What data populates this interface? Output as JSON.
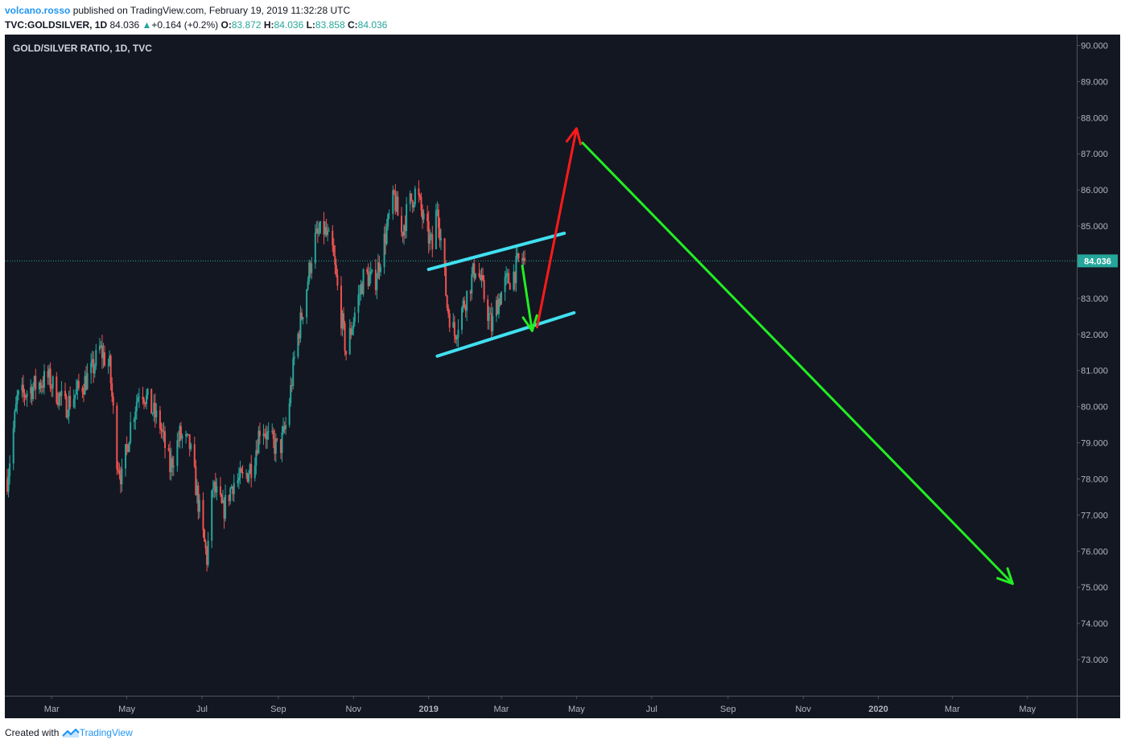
{
  "header": {
    "author": "volcano.rosso",
    "published_text": "published on TradingView.com, February 19, 2019 11:32:28 UTC",
    "symbol": "TVC:GOLDSILVER, 1D",
    "last": "84.036",
    "change_arrow": "▲",
    "change": "+0.164 (+0.2%)",
    "o_label": "O:",
    "o_value": "83.872",
    "h_label": "H:",
    "h_value": "84.036",
    "l_label": "L:",
    "l_value": "83.858",
    "c_label": "C:",
    "c_value": "84.036"
  },
  "footer": {
    "created_with": "Created with",
    "brand": "TradingView",
    "logo_icon": "tradingview-logo-icon"
  },
  "chart_data": {
    "type": "candlestick",
    "title": "GOLD/SILVER RATIO, 1D, TVC",
    "ylim": [
      72.0,
      90.3
    ],
    "y_ticks": [
      "90.000",
      "89.000",
      "88.000",
      "87.000",
      "86.000",
      "85.000",
      "84.000",
      "83.000",
      "82.000",
      "81.000",
      "80.000",
      "79.000",
      "78.000",
      "77.000",
      "76.000",
      "75.000",
      "74.000",
      "73.000"
    ],
    "x_ticks": [
      {
        "label": "Mar",
        "date": "2018-03-01"
      },
      {
        "label": "May",
        "date": "2018-05-01"
      },
      {
        "label": "Jul",
        "date": "2018-07-01"
      },
      {
        "label": "Sep",
        "date": "2018-09-01"
      },
      {
        "label": "Nov",
        "date": "2018-11-01"
      },
      {
        "label": "2019",
        "date": "2019-01-01"
      },
      {
        "label": "Mar",
        "date": "2019-03-01"
      },
      {
        "label": "May",
        "date": "2019-05-01"
      },
      {
        "label": "Jul",
        "date": "2019-07-01"
      },
      {
        "label": "Sep",
        "date": "2019-09-01"
      },
      {
        "label": "Nov",
        "date": "2019-11-01"
      },
      {
        "label": "2020",
        "date": "2020-01-01"
      },
      {
        "label": "Mar",
        "date": "2020-03-01"
      },
      {
        "label": "May",
        "date": "2020-05-01"
      }
    ],
    "x_range": [
      "2018-01-22",
      "2020-06-10"
    ],
    "last_price": 84.036,
    "last_price_label": "84.036",
    "grid": false,
    "colors": {
      "background": "#131722",
      "up": "#26a69a",
      "down": "#ef5350",
      "channel": "#40e0f0",
      "arrow_up": "#ff1a1a",
      "arrow_down": "#22ee22"
    },
    "price_path": [
      {
        "date": "2018-01-24",
        "close": 78.0
      },
      {
        "date": "2018-02-01",
        "close": 80.2
      },
      {
        "date": "2018-02-12",
        "close": 80.5
      },
      {
        "date": "2018-02-26",
        "close": 80.8
      },
      {
        "date": "2018-03-12",
        "close": 80.0
      },
      {
        "date": "2018-03-26",
        "close": 80.6
      },
      {
        "date": "2018-04-03",
        "close": 81.0
      },
      {
        "date": "2018-04-09",
        "close": 81.6
      },
      {
        "date": "2018-04-17",
        "close": 81.1
      },
      {
        "date": "2018-04-23",
        "close": 78.6
      },
      {
        "date": "2018-04-27",
        "close": 78.0
      },
      {
        "date": "2018-05-04",
        "close": 79.5
      },
      {
        "date": "2018-05-12",
        "close": 80.6
      },
      {
        "date": "2018-05-20",
        "close": 80.0
      },
      {
        "date": "2018-05-28",
        "close": 79.5
      },
      {
        "date": "2018-06-05",
        "close": 78.3
      },
      {
        "date": "2018-06-13",
        "close": 79.2
      },
      {
        "date": "2018-06-21",
        "close": 78.9
      },
      {
        "date": "2018-06-27",
        "close": 77.6
      },
      {
        "date": "2018-07-01",
        "close": 76.6
      },
      {
        "date": "2018-07-05",
        "close": 75.8
      },
      {
        "date": "2018-07-10",
        "close": 77.8
      },
      {
        "date": "2018-07-18",
        "close": 77.1
      },
      {
        "date": "2018-07-26",
        "close": 77.9
      },
      {
        "date": "2018-08-04",
        "close": 78.0
      },
      {
        "date": "2018-08-12",
        "close": 78.5
      },
      {
        "date": "2018-08-18",
        "close": 79.6
      },
      {
        "date": "2018-08-24",
        "close": 79.1
      },
      {
        "date": "2018-09-02",
        "close": 78.8
      },
      {
        "date": "2018-09-08",
        "close": 79.6
      },
      {
        "date": "2018-09-15",
        "close": 81.6
      },
      {
        "date": "2018-09-22",
        "close": 82.9
      },
      {
        "date": "2018-09-30",
        "close": 84.6
      },
      {
        "date": "2018-10-08",
        "close": 84.9
      },
      {
        "date": "2018-10-15",
        "close": 84.3
      },
      {
        "date": "2018-10-20",
        "close": 83.0
      },
      {
        "date": "2018-10-26",
        "close": 81.5
      },
      {
        "date": "2018-11-02",
        "close": 82.6
      },
      {
        "date": "2018-11-10",
        "close": 83.7
      },
      {
        "date": "2018-11-18",
        "close": 83.4
      },
      {
        "date": "2018-11-26",
        "close": 84.6
      },
      {
        "date": "2018-12-04",
        "close": 85.8
      },
      {
        "date": "2018-12-10",
        "close": 84.8
      },
      {
        "date": "2018-12-16",
        "close": 85.6
      },
      {
        "date": "2018-12-22",
        "close": 86.0
      },
      {
        "date": "2018-12-28",
        "close": 85.1
      },
      {
        "date": "2019-01-04",
        "close": 84.4
      },
      {
        "date": "2019-01-08",
        "close": 85.6
      },
      {
        "date": "2019-01-12",
        "close": 84.3
      },
      {
        "date": "2019-01-16",
        "close": 82.8
      },
      {
        "date": "2019-01-22",
        "close": 82.0
      },
      {
        "date": "2019-01-28",
        "close": 82.7
      },
      {
        "date": "2019-02-03",
        "close": 83.3
      },
      {
        "date": "2019-02-08",
        "close": 83.9
      },
      {
        "date": "2019-02-12",
        "close": 83.5
      },
      {
        "date": "2019-02-16",
        "close": 82.9
      },
      {
        "date": "2019-02-21",
        "close": 82.2
      },
      {
        "date": "2019-02-26",
        "close": 82.9
      },
      {
        "date": "2019-03-04",
        "close": 83.4
      },
      {
        "date": "2019-03-10",
        "close": 83.6
      },
      {
        "date": "2019-03-16",
        "close": 84.1
      },
      {
        "date": "2019-03-20",
        "close": 84.036
      }
    ],
    "annotations": {
      "channel_upper": {
        "start": [
          "2019-01-01",
          83.8
        ],
        "end": [
          "2019-04-21",
          84.8
        ]
      },
      "channel_lower": {
        "start": [
          "2019-01-08",
          81.4
        ],
        "end": [
          "2019-04-29",
          82.6
        ]
      },
      "arrow_down_small": {
        "start": [
          "2019-03-18",
          83.9
        ],
        "end": [
          "2019-03-26",
          82.1
        ]
      },
      "arrow_up_red": {
        "start": [
          "2019-03-30",
          82.2
        ],
        "end": [
          "2019-05-01",
          87.7
        ]
      },
      "arrow_down_long": {
        "start": [
          "2019-05-06",
          87.3
        ],
        "end": [
          "2020-04-19",
          75.1
        ]
      }
    }
  }
}
